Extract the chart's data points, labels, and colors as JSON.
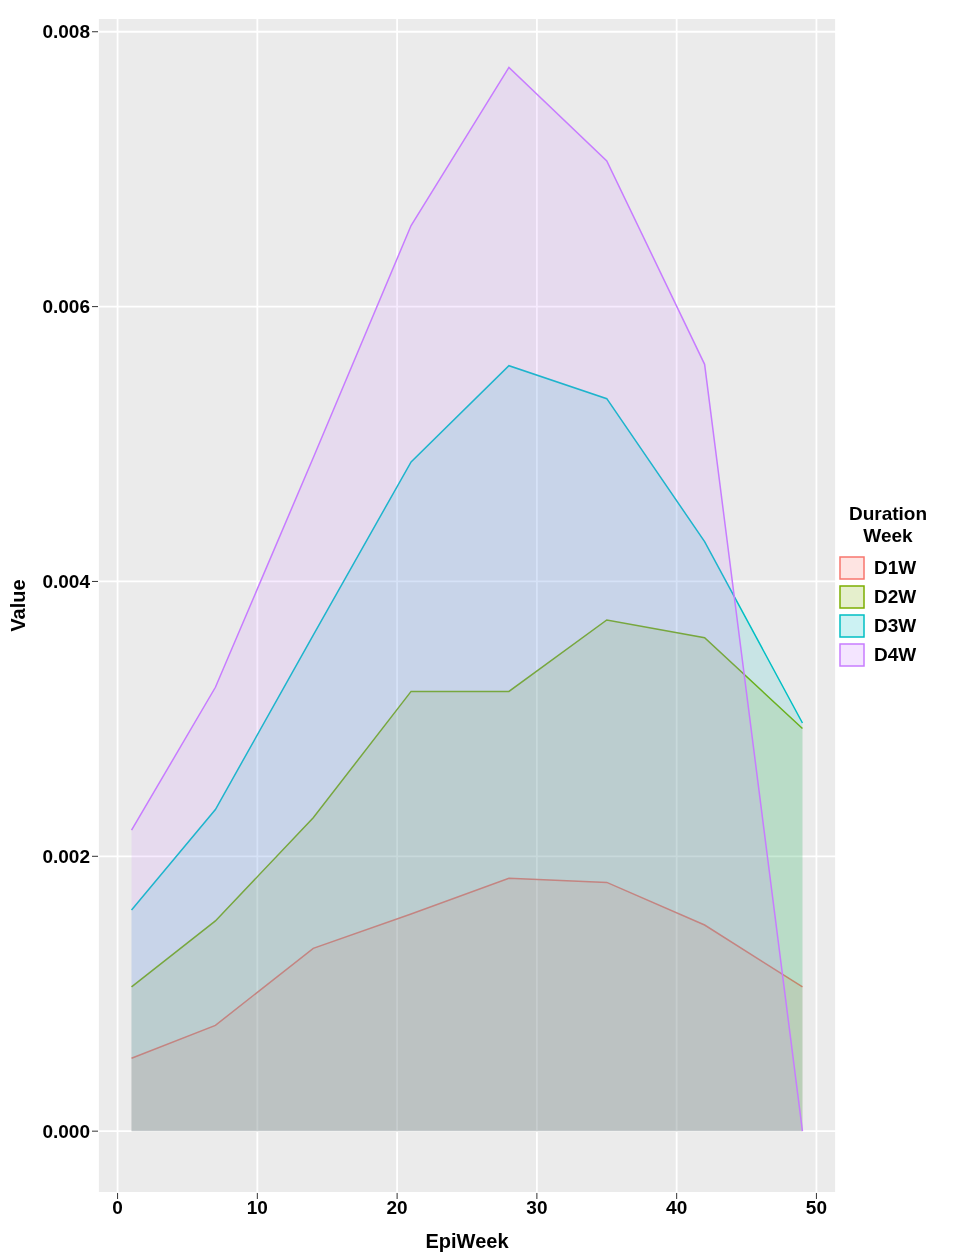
{
  "chart_data": {
    "type": "area",
    "xlabel": "EpiWeek",
    "ylabel": "Value",
    "legend_title": "Duration Week",
    "x": [
      1,
      7,
      14,
      21,
      28,
      35,
      42,
      49
    ],
    "series": [
      {
        "name": "D1W",
        "color": "#f8766d",
        "values": [
          0.00053,
          0.00077,
          0.00133,
          0.00158,
          0.00184,
          0.00181,
          0.0015,
          0.00105
        ]
      },
      {
        "name": "D2W",
        "color": "#7cae00",
        "values": [
          0.00105,
          0.00153,
          0.00228,
          0.0032,
          0.0032,
          0.00372,
          0.00359,
          0.00293
        ]
      },
      {
        "name": "D3W",
        "color": "#00bfc4",
        "values": [
          0.00161,
          0.00234,
          0.00361,
          0.00487,
          0.00557,
          0.00533,
          0.00429,
          0.00297
        ]
      },
      {
        "name": "D4W",
        "color": "#c77cff",
        "values": [
          0.00219,
          0.00323,
          0.0049,
          0.00659,
          0.00774,
          0.00706,
          0.00558,
          0
        ]
      }
    ],
    "xlim": [
      -1.4,
      51.4
    ],
    "xticks": [
      0,
      10,
      20,
      30,
      40,
      50
    ],
    "ylim": [
      -0.00045,
      0.0081
    ],
    "yticks": [
      {
        "value": 0,
        "label": "0.000"
      },
      {
        "value": 0.002,
        "label": "0.002"
      },
      {
        "value": 0.004,
        "label": "0.004"
      },
      {
        "value": 0.006,
        "label": "0.006"
      },
      {
        "value": 0.008,
        "label": "0.008"
      }
    ],
    "grid": true,
    "legend": "right"
  }
}
